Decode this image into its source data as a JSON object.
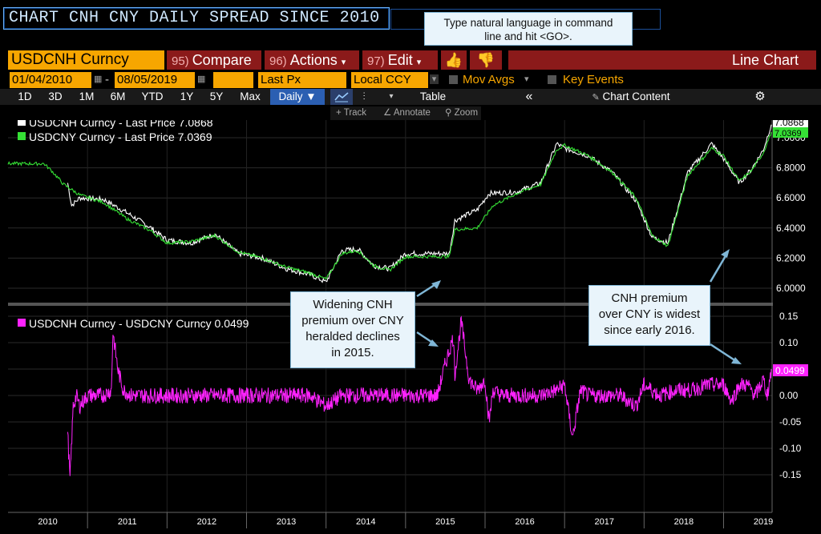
{
  "command": {
    "text": "CHART CNH CNY DAILY SPREAD SINCE 2010"
  },
  "notes": {
    "command_hint": "Type natural language in command line and hit <GO>.",
    "widening": [
      "Widening CNH",
      "premium over CNY",
      "heralded declines",
      "in 2015."
    ],
    "widest": [
      "CNH premium",
      "over CNY is widest",
      "since early 2016."
    ]
  },
  "toolbar": {
    "ticker": "USDCNH Curncy",
    "compare_num": "95)",
    "compare": "Compare",
    "actions_num": "96)",
    "actions": "Actions",
    "edit_num": "97)",
    "edit": "Edit",
    "chart_type": "Line Chart"
  },
  "settings": {
    "start_date": "01/04/2010",
    "end_date": "08/05/2019",
    "field": "Last Px",
    "currency": "Local CCY",
    "mov_avgs": "Mov Avgs",
    "key_events": "Key Events"
  },
  "periods": [
    "1D",
    "3D",
    "1M",
    "6M",
    "YTD",
    "1Y",
    "5Y",
    "Max"
  ],
  "frequency": "Daily ▼",
  "table_label": "Table",
  "chart_content_label": "Chart Content",
  "tools": {
    "track": "Track",
    "annotate": "Annotate",
    "zoom": "Zoom"
  },
  "colors": {
    "cnh": "#ffffff",
    "cny": "#35e035",
    "spread": "#ff22ff",
    "accent": "#f7a600",
    "bar_red": "#8b1a1a"
  },
  "chart_data": [
    {
      "type": "line",
      "legend": [
        "USDCNH Curncy - Last Price 7.0868",
        "USDCNY Curncy - Last Price 7.0369"
      ],
      "last_labels": [
        "7.0868",
        "7.0369"
      ],
      "y_ticks": [
        "7.0000",
        "6.8000",
        "6.6000",
        "6.4000",
        "6.2000",
        "6.0000"
      ],
      "ylim": [
        5.96,
        7.14
      ],
      "xlim": [
        2010.0,
        2019.6
      ],
      "series": [
        {
          "name": "USDCNY Curncy",
          "x": [
            2010.0,
            2010.45,
            2010.55,
            2010.7,
            2010.9,
            2011.2,
            2011.5,
            2011.8,
            2012.0,
            2012.3,
            2012.6,
            2012.9,
            2013.2,
            2013.5,
            2013.8,
            2014.0,
            2014.2,
            2014.4,
            2014.6,
            2014.8,
            2015.0,
            2015.55,
            2015.62,
            2015.9,
            2016.1,
            2016.4,
            2016.7,
            2016.9,
            2017.0,
            2017.3,
            2017.6,
            2017.9,
            2018.1,
            2018.3,
            2018.55,
            2018.85,
            2019.0,
            2019.2,
            2019.35,
            2019.5,
            2019.6
          ],
          "y": [
            6.8275,
            6.8275,
            6.78,
            6.69,
            6.62,
            6.57,
            6.46,
            6.38,
            6.3,
            6.31,
            6.35,
            6.24,
            6.2,
            6.14,
            6.1,
            6.06,
            6.23,
            6.25,
            6.15,
            6.12,
            6.21,
            6.21,
            6.39,
            6.4,
            6.55,
            6.63,
            6.69,
            6.92,
            6.95,
            6.88,
            6.77,
            6.6,
            6.35,
            6.28,
            6.75,
            6.93,
            6.88,
            6.71,
            6.78,
            6.9,
            7.0369
          ]
        },
        {
          "name": "USDCNH Curncy",
          "x": [
            2010.75,
            2010.8,
            2010.9,
            2011.2,
            2011.5,
            2011.8,
            2012.0,
            2012.3,
            2012.6,
            2012.9,
            2013.2,
            2013.5,
            2013.8,
            2014.0,
            2014.2,
            2014.4,
            2014.6,
            2014.8,
            2015.0,
            2015.55,
            2015.62,
            2015.9,
            2016.05,
            2016.4,
            2016.7,
            2016.9,
            2017.0,
            2017.3,
            2017.6,
            2017.9,
            2018.1,
            2018.3,
            2018.55,
            2018.85,
            2019.0,
            2019.2,
            2019.35,
            2019.5,
            2019.6
          ],
          "y": [
            6.7,
            6.55,
            6.6,
            6.59,
            6.5,
            6.4,
            6.32,
            6.3,
            6.36,
            6.23,
            6.2,
            6.13,
            6.09,
            6.04,
            6.25,
            6.26,
            6.15,
            6.13,
            6.23,
            6.23,
            6.45,
            6.52,
            6.63,
            6.64,
            6.7,
            6.96,
            6.93,
            6.88,
            6.77,
            6.58,
            6.34,
            6.3,
            6.77,
            6.96,
            6.86,
            6.7,
            6.79,
            6.92,
            7.0868
          ]
        }
      ]
    },
    {
      "type": "line",
      "legend": [
        "USDCNH Curncy - USDCNY Curncy 0.0499"
      ],
      "last_label": "0.0499",
      "y_ticks": [
        "0.15",
        "0.10",
        "0.05",
        "0.00",
        "-0.05",
        "-0.10",
        "-0.15"
      ],
      "ylim": [
        -0.18,
        0.17
      ],
      "xlim": [
        2010.0,
        2019.6
      ],
      "x_ticks": [
        "2010",
        "2011",
        "2012",
        "2013",
        "2014",
        "2015",
        "2016",
        "2017",
        "2018",
        "2019"
      ],
      "series": [
        {
          "name": "USDCNH Curncy - USDCNY Curncy",
          "x": [
            2010.75,
            2010.78,
            2010.82,
            2010.86,
            2010.9,
            2011.0,
            2011.1,
            2011.2,
            2011.3,
            2011.32,
            2011.38,
            2011.45,
            2011.55,
            2011.7,
            2011.85,
            2012.0,
            2012.2,
            2012.4,
            2012.6,
            2012.8,
            2013.0,
            2013.2,
            2013.4,
            2013.6,
            2013.8,
            2014.0,
            2014.2,
            2014.4,
            2014.6,
            2014.8,
            2015.0,
            2015.2,
            2015.4,
            2015.5,
            2015.6,
            2015.62,
            2015.7,
            2015.8,
            2015.9,
            2016.0,
            2016.05,
            2016.1,
            2016.2,
            2016.35,
            2016.5,
            2016.6,
            2016.7,
            2016.9,
            2017.0,
            2017.1,
            2017.2,
            2017.3,
            2017.5,
            2017.7,
            2017.9,
            2018.0,
            2018.2,
            2018.4,
            2018.6,
            2018.8,
            2019.0,
            2019.1,
            2019.2,
            2019.3,
            2019.4,
            2019.5,
            2019.55,
            2019.6
          ],
          "y": [
            -0.07,
            -0.16,
            -0.02,
            0.0,
            -0.02,
            0.0,
            0.0,
            0.0,
            0.01,
            0.12,
            0.05,
            0.01,
            0.0,
            0.0,
            0.0,
            0.0,
            0.0,
            0.0,
            0.0,
            0.0,
            0.0,
            0.0,
            0.0,
            0.0,
            0.0,
            -0.02,
            0.0,
            0.0,
            0.0,
            0.0,
            0.0,
            0.0,
            0.0,
            0.06,
            0.11,
            0.04,
            0.14,
            0.03,
            0.01,
            0.03,
            -0.05,
            0.01,
            0.0,
            0.0,
            0.0,
            0.0,
            0.0,
            0.01,
            0.02,
            -0.08,
            0.01,
            0.0,
            0.0,
            0.0,
            -0.02,
            0.02,
            0.0,
            0.01,
            0.01,
            0.02,
            0.02,
            -0.01,
            0.02,
            0.02,
            0.0,
            0.03,
            0.0,
            0.0499
          ]
        }
      ]
    }
  ]
}
